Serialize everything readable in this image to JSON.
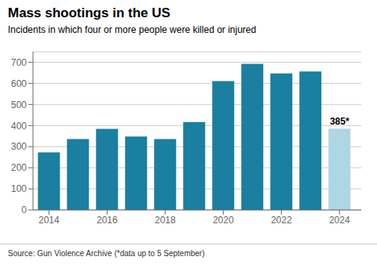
{
  "chart_data": {
    "type": "bar",
    "title": "Mass shootings in the US",
    "subtitle": "Incidents in which four or more people were killed or injured",
    "source": "Source: Gun Violence Archive (*data up to 5 September)",
    "x": [
      2014,
      2015,
      2016,
      2017,
      2018,
      2019,
      2020,
      2021,
      2022,
      2023,
      2024
    ],
    "values": [
      273,
      336,
      384,
      348,
      336,
      417,
      611,
      692,
      647,
      656,
      385
    ],
    "colors": [
      "#1a7fa0",
      "#1a7fa0",
      "#1a7fa0",
      "#1a7fa0",
      "#1a7fa0",
      "#1a7fa0",
      "#1a7fa0",
      "#1a7fa0",
      "#1a7fa0",
      "#1a7fa0",
      "#aed6e3"
    ],
    "xlim": [
      2013.45,
      2024.75
    ],
    "xticks": [
      2014,
      2016,
      2018,
      2020,
      2022,
      2024
    ],
    "ylim": [
      0,
      750
    ],
    "yticks": [
      0,
      100,
      200,
      300,
      400,
      500,
      600,
      700
    ],
    "grid": true,
    "annotations": [
      {
        "text": "385*",
        "x": 2024,
        "y": 385
      }
    ]
  }
}
